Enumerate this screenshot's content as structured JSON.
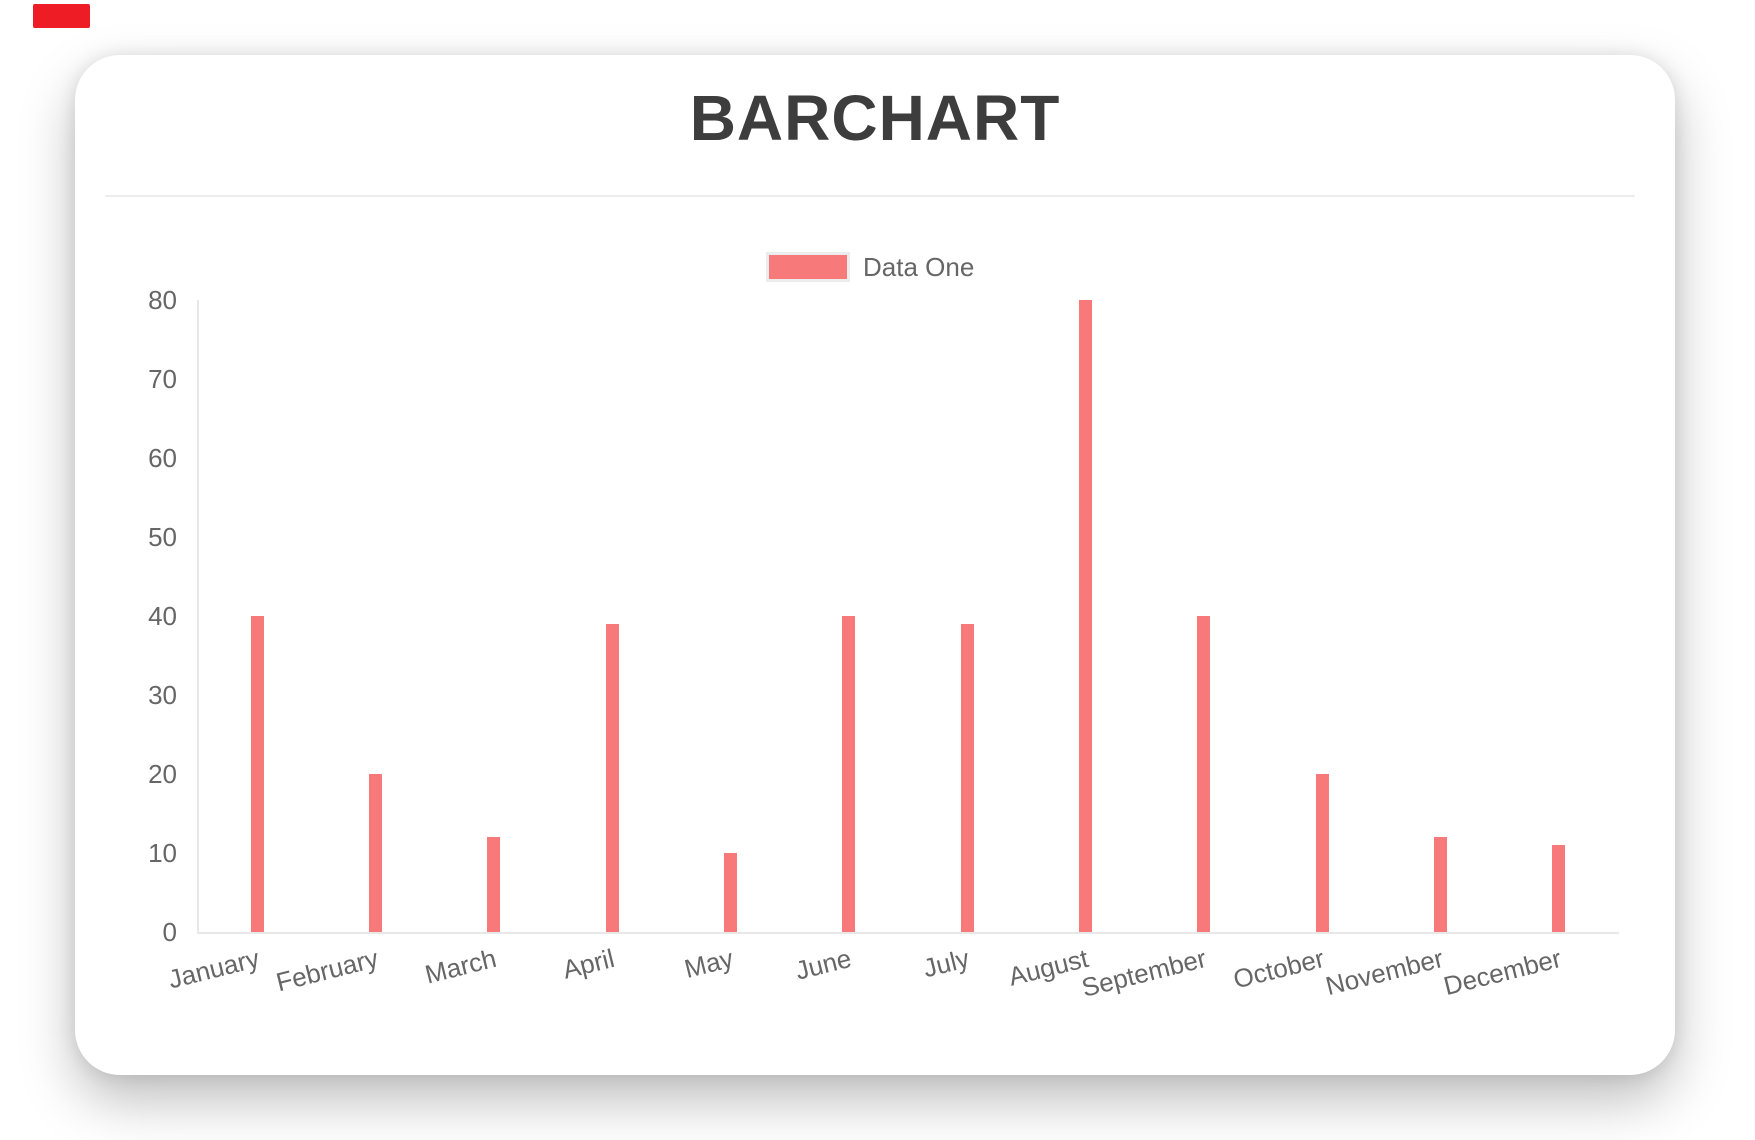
{
  "page": {
    "badge_color": "#ee1c25"
  },
  "card": {
    "title": "BARCHART"
  },
  "legend": {
    "label": "Data One",
    "swatch_color": "#f87979",
    "swatch_border_color": "#ececec"
  },
  "chart_data": {
    "type": "bar",
    "title": "BARCHART",
    "categories": [
      "January",
      "February",
      "March",
      "April",
      "May",
      "June",
      "July",
      "August",
      "September",
      "October",
      "November",
      "December"
    ],
    "series": [
      {
        "name": "Data One",
        "color": "#f87979",
        "values": [
          40,
          20,
          12,
          39,
          10,
          40,
          39,
          80,
          40,
          20,
          12,
          11
        ]
      }
    ],
    "xlabel": "",
    "ylabel": "",
    "ylim": [
      0,
      80
    ],
    "yticks": [
      0,
      10,
      20,
      30,
      40,
      50,
      60,
      70,
      80
    ],
    "grid": false,
    "legend_position": "top"
  }
}
